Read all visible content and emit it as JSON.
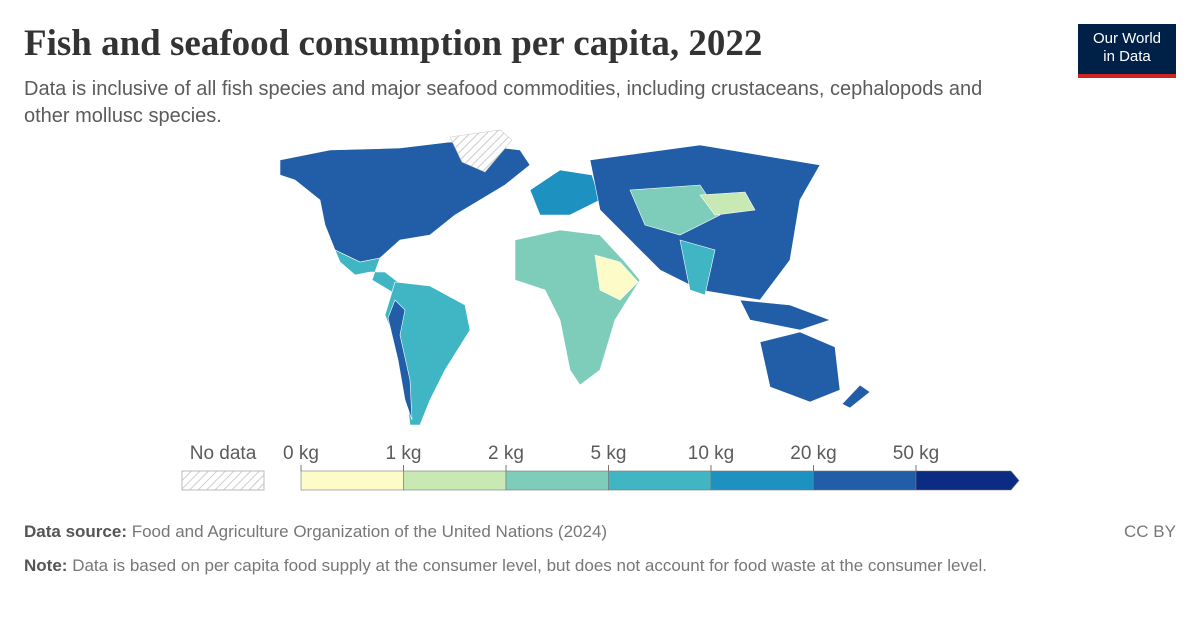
{
  "header": {
    "title": "Fish and seafood consumption per capita, 2022",
    "subtitle": "Data is inclusive of all fish species and major seafood commodities, including crustaceans, cephalopods and other mollusc species."
  },
  "logo": {
    "line1": "Our World",
    "line2": "in Data"
  },
  "legend": {
    "no_data": "No data",
    "bins": [
      {
        "label": "0 kg",
        "color": "#fdfcc9"
      },
      {
        "label": "1 kg",
        "color": "#c8e8b4"
      },
      {
        "label": "2 kg",
        "color": "#7ecdbb"
      },
      {
        "label": "5 kg",
        "color": "#40b5c4"
      },
      {
        "label": "10 kg",
        "color": "#1d91c0"
      },
      {
        "label": "20 kg",
        "color": "#225ea8"
      },
      {
        "label": "50 kg",
        "color": "#0c2c84"
      }
    ]
  },
  "footer": {
    "source_label": "Data source:",
    "source": "Food and Agriculture Organization of the United Nations (2024)",
    "license": "CC BY",
    "note_label": "Note:",
    "note": "Data is based on per capita food supply at the consumer level, but does not account for food waste at the consumer level."
  }
}
